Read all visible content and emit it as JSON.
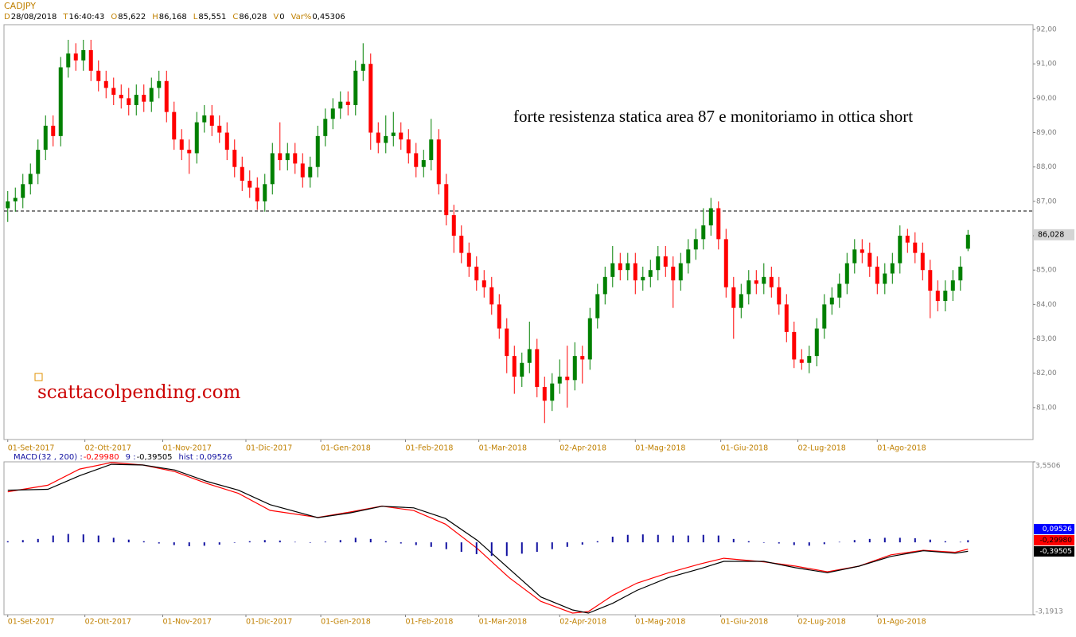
{
  "header": {
    "symbol": "CADJPY",
    "fields": [
      {
        "key": "D",
        "value": "28/08/2018"
      },
      {
        "key": "T",
        "value": "16:40:43"
      },
      {
        "key": "O",
        "value": "85,622"
      },
      {
        "key": "H",
        "value": "86,168"
      },
      {
        "key": "L",
        "value": "85,551"
      },
      {
        "key": "C",
        "value": "86,028"
      },
      {
        "key": "V",
        "value": "0"
      },
      {
        "key": "Var%",
        "value": "0,45306"
      }
    ]
  },
  "chart_data": [
    {
      "type": "candlestick",
      "up_color": "#008000",
      "down_color": "#ff0000",
      "open": [
        86.8,
        87.0,
        87.1,
        87.5,
        87.8,
        88.5,
        89.2,
        88.9,
        90.9,
        91.3,
        91.1,
        91.4,
        90.8,
        90.5,
        90.3,
        90.1,
        90.0,
        89.8,
        90.1,
        89.9,
        90.3,
        90.5,
        89.6,
        88.8,
        88.5,
        88.4,
        89.3,
        89.5,
        89.2,
        89.0,
        88.5,
        88.0,
        87.6,
        87.4,
        87.0,
        87.5,
        88.4,
        88.2,
        88.4,
        88.1,
        87.7,
        88.0,
        88.9,
        89.4,
        89.7,
        89.9,
        89.8,
        90.8,
        91.0,
        89.0,
        88.7,
        88.9,
        89.0,
        88.8,
        88.4,
        88.0,
        88.2,
        88.8,
        87.5,
        86.6,
        86.0,
        85.5,
        85.1,
        84.7,
        84.5,
        84.0,
        83.3,
        82.5,
        81.9,
        82.3,
        82.7,
        81.6,
        81.2,
        81.7,
        81.9,
        81.8,
        82.5,
        82.4,
        83.6,
        84.3,
        84.8,
        85.2,
        85.0,
        85.2,
        84.7,
        84.8,
        85.0,
        85.4,
        85.1,
        84.7,
        85.2,
        85.6,
        85.9,
        86.3,
        86.8,
        85.9,
        84.5,
        83.9,
        84.3,
        84.7,
        84.6,
        84.8,
        84.5,
        84.0,
        83.2,
        82.4,
        82.3,
        82.5,
        83.3,
        84.0,
        84.2,
        84.6,
        85.2,
        85.6,
        85.5,
        85.1,
        84.6,
        84.9,
        85.2,
        86.0,
        85.8,
        85.5,
        85.0,
        84.4,
        84.1,
        84.4,
        84.7,
        85.622
      ],
      "high": [
        87.3,
        87.4,
        87.8,
        88.1,
        88.8,
        89.5,
        89.5,
        91.2,
        91.7,
        91.6,
        91.7,
        91.7,
        91.1,
        90.8,
        90.6,
        90.4,
        90.3,
        90.4,
        90.4,
        90.6,
        90.8,
        90.8,
        89.9,
        89.1,
        88.8,
        89.6,
        89.8,
        89.8,
        89.5,
        89.3,
        88.8,
        88.3,
        87.9,
        87.7,
        87.8,
        88.7,
        89.3,
        88.7,
        88.7,
        88.4,
        88.3,
        89.2,
        89.7,
        90.0,
        90.2,
        90.2,
        91.1,
        91.6,
        91.3,
        89.3,
        89.5,
        89.6,
        89.3,
        89.1,
        88.7,
        88.5,
        89.4,
        89.1,
        87.8,
        86.9,
        86.3,
        85.8,
        85.4,
        85.0,
        84.8,
        84.3,
        83.6,
        82.8,
        82.6,
        83.5,
        83.0,
        81.9,
        82.0,
        82.4,
        82.8,
        82.9,
        82.8,
        83.9,
        84.6,
        85.1,
        85.7,
        85.5,
        85.5,
        85.5,
        85.1,
        85.3,
        85.7,
        85.7,
        85.4,
        85.5,
        85.9,
        86.2,
        86.8,
        87.1,
        87.0,
        86.2,
        84.8,
        84.6,
        85.0,
        85.0,
        85.2,
        85.1,
        84.8,
        84.3,
        83.5,
        82.7,
        82.8,
        83.6,
        84.3,
        84.5,
        84.9,
        85.5,
        85.9,
        85.9,
        85.8,
        85.4,
        85.2,
        85.5,
        86.3,
        86.2,
        86.1,
        85.8,
        85.3,
        84.7,
        84.7,
        85.0,
        85.4,
        86.168
      ],
      "low": [
        86.4,
        86.7,
        86.8,
        87.2,
        87.5,
        88.2,
        88.6,
        88.6,
        90.6,
        90.8,
        90.8,
        90.5,
        90.2,
        90.0,
        89.8,
        89.7,
        89.5,
        89.5,
        89.6,
        89.6,
        90.0,
        89.3,
        88.5,
        88.2,
        87.8,
        88.1,
        89.0,
        88.9,
        88.7,
        88.2,
        87.7,
        87.3,
        87.1,
        86.75,
        86.7,
        87.2,
        87.9,
        87.9,
        87.8,
        87.4,
        87.4,
        87.7,
        88.6,
        89.1,
        89.4,
        89.5,
        89.5,
        90.5,
        88.5,
        88.4,
        88.4,
        88.6,
        88.5,
        88.1,
        87.7,
        87.7,
        87.9,
        87.2,
        86.3,
        85.5,
        85.2,
        84.8,
        84.4,
        84.2,
        83.7,
        83.0,
        82.0,
        81.4,
        81.6,
        82.0,
        81.3,
        80.55,
        80.9,
        81.4,
        81.0,
        81.5,
        81.7,
        82.1,
        83.3,
        84.0,
        84.5,
        84.7,
        84.7,
        84.3,
        84.4,
        84.5,
        84.7,
        84.8,
        83.9,
        84.4,
        84.9,
        85.3,
        85.6,
        86.0,
        85.6,
        84.2,
        83.0,
        83.6,
        84.0,
        84.3,
        84.3,
        84.2,
        83.7,
        82.9,
        82.15,
        82.1,
        82.0,
        82.2,
        83.0,
        83.7,
        83.9,
        84.3,
        84.9,
        85.2,
        84.8,
        84.3,
        84.3,
        84.6,
        84.9,
        85.5,
        85.2,
        84.7,
        83.6,
        83.8,
        83.8,
        84.1,
        84.4,
        85.551
      ],
      "close": [
        87.0,
        87.1,
        87.5,
        87.8,
        88.5,
        89.2,
        88.9,
        90.9,
        91.3,
        91.1,
        91.4,
        90.8,
        90.5,
        90.3,
        90.1,
        90.0,
        89.8,
        90.1,
        89.9,
        90.3,
        90.5,
        89.6,
        88.8,
        88.5,
        88.4,
        89.3,
        89.5,
        89.2,
        89.0,
        88.5,
        88.0,
        87.6,
        87.4,
        87.0,
        87.5,
        88.4,
        88.2,
        88.4,
        88.1,
        87.7,
        88.0,
        88.9,
        89.4,
        89.7,
        89.9,
        89.8,
        90.8,
        91.0,
        89.0,
        88.7,
        88.9,
        89.0,
        88.8,
        88.4,
        88.0,
        88.2,
        88.8,
        87.5,
        86.6,
        86.0,
        85.5,
        85.1,
        84.7,
        84.5,
        84.0,
        83.3,
        82.5,
        81.9,
        82.3,
        82.7,
        81.6,
        81.2,
        81.7,
        81.9,
        81.8,
        82.5,
        82.4,
        83.6,
        84.3,
        84.8,
        85.2,
        85.0,
        85.2,
        84.7,
        84.8,
        85.0,
        85.4,
        85.1,
        84.7,
        85.2,
        85.6,
        85.9,
        86.3,
        86.8,
        85.9,
        84.5,
        83.9,
        84.3,
        84.7,
        84.6,
        84.8,
        84.5,
        84.0,
        83.2,
        82.4,
        82.3,
        82.5,
        83.3,
        84.0,
        84.2,
        84.6,
        85.2,
        85.6,
        85.5,
        85.1,
        84.6,
        84.9,
        85.2,
        86.0,
        85.8,
        85.5,
        85.0,
        84.4,
        84.1,
        84.4,
        84.7,
        85.1,
        86.028
      ],
      "last_label": "86,028",
      "resistance_level": 86.72,
      "annotations": [
        "forte resistenza statica area 87 e monitoriamo in ottica short"
      ],
      "watermark": "scattacolpending.com",
      "xlim": [
        -0.5,
        135.6
      ],
      "xticks": [
        {
          "value": 0,
          "label": "01-Set-2017"
        },
        {
          "value": 10.2,
          "label": "02-Ott-2017"
        },
        {
          "value": 20.5,
          "label": "01-Nov-2017"
        },
        {
          "value": 31.5,
          "label": "01-Dic-2017"
        },
        {
          "value": 41.4,
          "label": "01-Gen-2018"
        },
        {
          "value": 52.6,
          "label": "01-Feb-2018"
        },
        {
          "value": 62.3,
          "label": "01-Mar-2018"
        },
        {
          "value": 73,
          "label": "02-Apr-2018"
        },
        {
          "value": 83,
          "label": "01-Mag-2018"
        },
        {
          "value": 94.3,
          "label": "01-Giu-2018"
        },
        {
          "value": 104.5,
          "label": "02-Lug-2018"
        },
        {
          "value": 115,
          "label": "01-Ago-2018"
        }
      ],
      "ylim": [
        80.07,
        92.14
      ],
      "yticks": [
        {
          "value": 81,
          "label": "81,00"
        },
        {
          "value": 82,
          "label": "82,00"
        },
        {
          "value": 83,
          "label": "83,00"
        },
        {
          "value": 84,
          "label": "84,00"
        },
        {
          "value": 85,
          "label": "85,00"
        },
        {
          "value": 86,
          "label": "86,00"
        },
        {
          "value": 87,
          "label": "87,00"
        },
        {
          "value": 88,
          "label": "88,00"
        },
        {
          "value": 89,
          "label": "89,00"
        },
        {
          "value": 90,
          "label": "90,00"
        },
        {
          "value": 91,
          "label": "91,00"
        },
        {
          "value": 92,
          "label": "92,00"
        }
      ]
    },
    {
      "type": "macd",
      "xlim": [
        -0.5,
        135.6
      ],
      "ylim": [
        -3.1913,
        3.5506
      ],
      "yticks": [
        {
          "value": -3.1913,
          "label": "-3,1913"
        },
        {
          "value": 3.5506,
          "label": "3,5506"
        }
      ],
      "series": [
        {
          "name": "MACD",
          "params": "(32 , 200) :",
          "color": "#ff0000",
          "last_label": "-0,29980",
          "x": [
            0,
            5.3,
            9.5,
            13.7,
            17.9,
            22.1,
            26.3,
            30.5,
            34.7,
            41,
            45.3,
            49.5,
            53.7,
            57.9,
            62.1,
            66.3,
            70.5,
            74.7,
            76.8,
            80,
            83.2,
            87.4,
            91.6,
            94.7,
            100,
            104.2,
            108.4,
            112.6,
            116.8,
            121.1,
            125.3,
            127
          ],
          "values": [
            2.23,
            2.52,
            3.23,
            3.52,
            3.41,
            3.12,
            2.6,
            2.16,
            1.41,
            1.1,
            1.34,
            1.6,
            1.4,
            0.8,
            -0.27,
            -1.55,
            -2.6,
            -3.12,
            -3.05,
            -2.34,
            -1.8,
            -1.34,
            -0.95,
            -0.7,
            -0.86,
            -1.05,
            -1.3,
            -1.05,
            -0.55,
            -0.35,
            -0.44,
            -0.2998
          ]
        },
        {
          "name": "9 :",
          "color": "#000000",
          "last_label": "-0,39505",
          "x": [
            0,
            5.3,
            9.5,
            13.7,
            17.9,
            22.1,
            26.3,
            30.5,
            34.7,
            41,
            45.3,
            49.5,
            53.7,
            57.9,
            62.1,
            66.3,
            70.5,
            74.7,
            76.8,
            80,
            83.2,
            87.4,
            91.6,
            94.7,
            100,
            104.2,
            108.4,
            112.6,
            116.8,
            121.1,
            125.3,
            127
          ],
          "values": [
            2.3,
            2.34,
            2.94,
            3.44,
            3.41,
            3.19,
            2.69,
            2.3,
            1.66,
            1.09,
            1.3,
            1.59,
            1.52,
            1.05,
            0.09,
            -1.16,
            -2.41,
            -2.98,
            -3.12,
            -2.69,
            -2.12,
            -1.55,
            -1.16,
            -0.84,
            -0.84,
            -1.12,
            -1.34,
            -1.05,
            -0.62,
            -0.37,
            -0.48,
            -0.39505
          ]
        },
        {
          "name": "hist :",
          "color": "#1010a0",
          "tag_color": "#0000ff",
          "last_label": "0,09526",
          "x": [
            0,
            2,
            4,
            6,
            8,
            10,
            12,
            14,
            16,
            18,
            20,
            22,
            24,
            26,
            28,
            30,
            32,
            34,
            36,
            38,
            40,
            42,
            44,
            46,
            48,
            50,
            52,
            54,
            56,
            58,
            60,
            62,
            64,
            66,
            68,
            70,
            72,
            74,
            76,
            78,
            80,
            82,
            84,
            86,
            88,
            90,
            92,
            94,
            96,
            98,
            100,
            102,
            104,
            106,
            108,
            110,
            112,
            114,
            116,
            118,
            120,
            122,
            124,
            126,
            127
          ],
          "values": [
            0.05,
            0.1,
            0.15,
            0.3,
            0.37,
            0.35,
            0.3,
            0.2,
            0.12,
            0.05,
            -0.05,
            -0.12,
            -0.17,
            -0.15,
            -0.1,
            -0.02,
            0.05,
            0.1,
            0.08,
            0.02,
            -0.02,
            0.03,
            0.1,
            0.2,
            0.15,
            0.05,
            -0.05,
            -0.12,
            -0.2,
            -0.3,
            -0.42,
            -0.52,
            -0.6,
            -0.6,
            -0.5,
            -0.42,
            -0.3,
            -0.2,
            -0.1,
            0.05,
            0.25,
            0.33,
            0.35,
            0.33,
            0.3,
            0.3,
            0.33,
            0.3,
            0.15,
            0.05,
            -0.02,
            -0.05,
            -0.12,
            -0.15,
            -0.08,
            0.02,
            0.1,
            0.15,
            0.2,
            0.2,
            0.18,
            0.12,
            0.05,
            0.02,
            0.09526
          ]
        }
      ]
    }
  ]
}
